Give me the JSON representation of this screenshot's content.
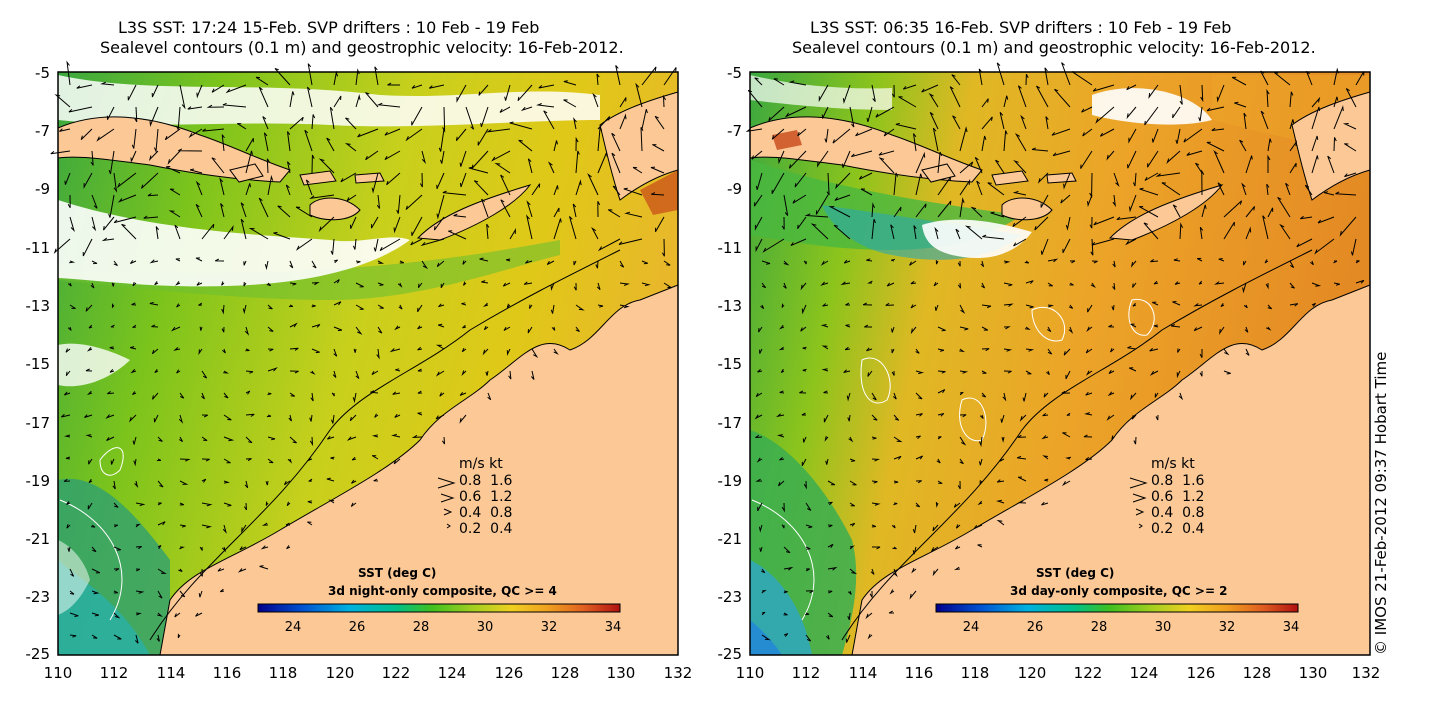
{
  "panels": [
    {
      "id": "left",
      "title_line1": "L3S SST: 17:24 15-Feb. SVP drifters : 10 Feb - 19 Feb",
      "title_line2": "Sealevel contours (0.1 m) and geostrophic velocity: 16-Feb-2012.",
      "colorbar_title": "SST (deg C)",
      "colorbar_subtitle": "3d night-only composite, QC >= 4",
      "dominant_colors": [
        "#5ec21c",
        "#b6d21c",
        "#d9c814",
        "#e8b02a"
      ]
    },
    {
      "id": "right",
      "title_line1": "L3S SST: 06:35 16-Feb. SVP drifters : 10 Feb - 19 Feb",
      "title_line2": "Sealevel contours (0.1 m) and geostrophic velocity: 16-Feb-2012.",
      "colorbar_title": "SST (deg C)",
      "colorbar_subtitle": "3d day-only composite, QC >= 2",
      "dominant_colors": [
        "#56be24",
        "#e8b424",
        "#ec9a28",
        "#e27a26"
      ]
    }
  ],
  "y_ticks": [
    "-5",
    "-7",
    "-9",
    "-11",
    "-13",
    "-15",
    "-17",
    "-19",
    "-21",
    "-23",
    "-25"
  ],
  "x_ticks": [
    "110",
    "112",
    "114",
    "116",
    "118",
    "120",
    "122",
    "124",
    "126",
    "128",
    "130",
    "132"
  ],
  "colorbar_ticks": [
    "24",
    "26",
    "28",
    "30",
    "32",
    "34"
  ],
  "velocity_legend": {
    "header": "m/s  kt",
    "rows": [
      {
        "ms": "0.8",
        "kt": "1.6"
      },
      {
        "ms": "0.6",
        "kt": "1.2"
      },
      {
        "ms": "0.4",
        "kt": "0.8"
      },
      {
        "ms": "0.2",
        "kt": "0.4"
      }
    ]
  },
  "copyright": "© IMOS 21-Feb-2012 09:37 Hobart Time",
  "colors": {
    "land": "#fbc896",
    "cloud_white": "#ffffff",
    "colormap": [
      "#00008b",
      "#0050d0",
      "#00b0e0",
      "#00c08a",
      "#40c020",
      "#a8d020",
      "#f0d020",
      "#f0a020",
      "#e06020",
      "#b01010"
    ]
  }
}
